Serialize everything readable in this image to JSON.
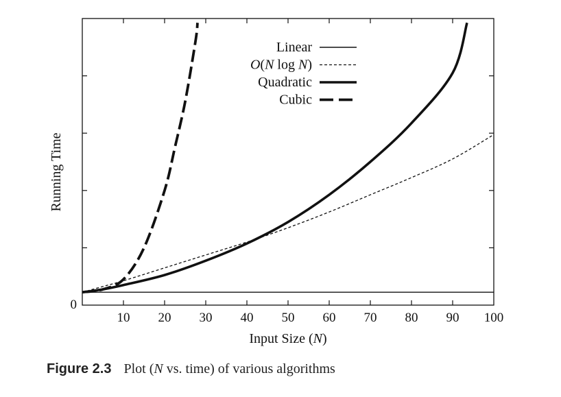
{
  "figure": {
    "label": "Figure 2.3",
    "caption_pre": "Plot (",
    "caption_italic": "N",
    "caption_post": " vs. time) of various algorithms"
  },
  "chart_data": {
    "type": "line",
    "xlabel_text": "Input Size (",
    "xlabel_italic": "N",
    "xlabel_close": ")",
    "ylabel": "Running Time",
    "xlim": [
      0,
      100
    ],
    "ylim": [
      0,
      100
    ],
    "x_ticks": [
      10,
      20,
      30,
      40,
      50,
      60,
      70,
      80,
      90,
      100
    ],
    "y_tick_values": [
      0,
      20,
      40,
      60,
      80
    ],
    "y_tick_labels": [
      "0"
    ],
    "grid": false,
    "legend_position": "top-center",
    "legend": [
      {
        "name": "Linear",
        "style": "solid-thin"
      },
      {
        "name": "O(N log N)",
        "name_o": "O",
        "name_n1": "N",
        "name_log": " log ",
        "name_n2": "N",
        "style": "dashed-thin"
      },
      {
        "name": "Quadratic",
        "style": "solid-thick"
      },
      {
        "name": "Cubic",
        "style": "dashed-thick"
      }
    ],
    "series": [
      {
        "name": "Linear",
        "style": "solid-thin",
        "x": [
          0,
          10,
          20,
          30,
          40,
          50,
          60,
          70,
          80,
          90,
          100
        ],
        "y": [
          4.5,
          4.5,
          4.5,
          4.5,
          4.5,
          4.5,
          4.5,
          4.5,
          4.5,
          4.5,
          4.5
        ]
      },
      {
        "name": "O(N log N)",
        "style": "dashed-thin",
        "x": [
          0,
          5,
          10,
          20,
          30,
          40,
          50,
          60,
          70,
          80,
          90,
          100
        ],
        "y": [
          4.5,
          6.5,
          8.5,
          13,
          17.5,
          22,
          27,
          32.5,
          38.5,
          44.5,
          51,
          59.5
        ]
      },
      {
        "name": "Quadratic",
        "style": "solid-thick",
        "x": [
          0,
          5,
          10,
          20,
          30,
          40,
          50,
          60,
          70,
          80,
          90,
          93.5
        ],
        "y": [
          4.5,
          5.5,
          7,
          10.5,
          15.5,
          21.5,
          29,
          38.5,
          50,
          63.5,
          81,
          98.5
        ]
      },
      {
        "name": "Cubic",
        "style": "dashed-thick",
        "x": [
          0,
          5,
          10,
          15,
          20,
          22.5,
          25,
          27.5,
          28
        ],
        "y": [
          4.5,
          5.5,
          9,
          20,
          40,
          55,
          71,
          92,
          98.5
        ]
      }
    ]
  }
}
